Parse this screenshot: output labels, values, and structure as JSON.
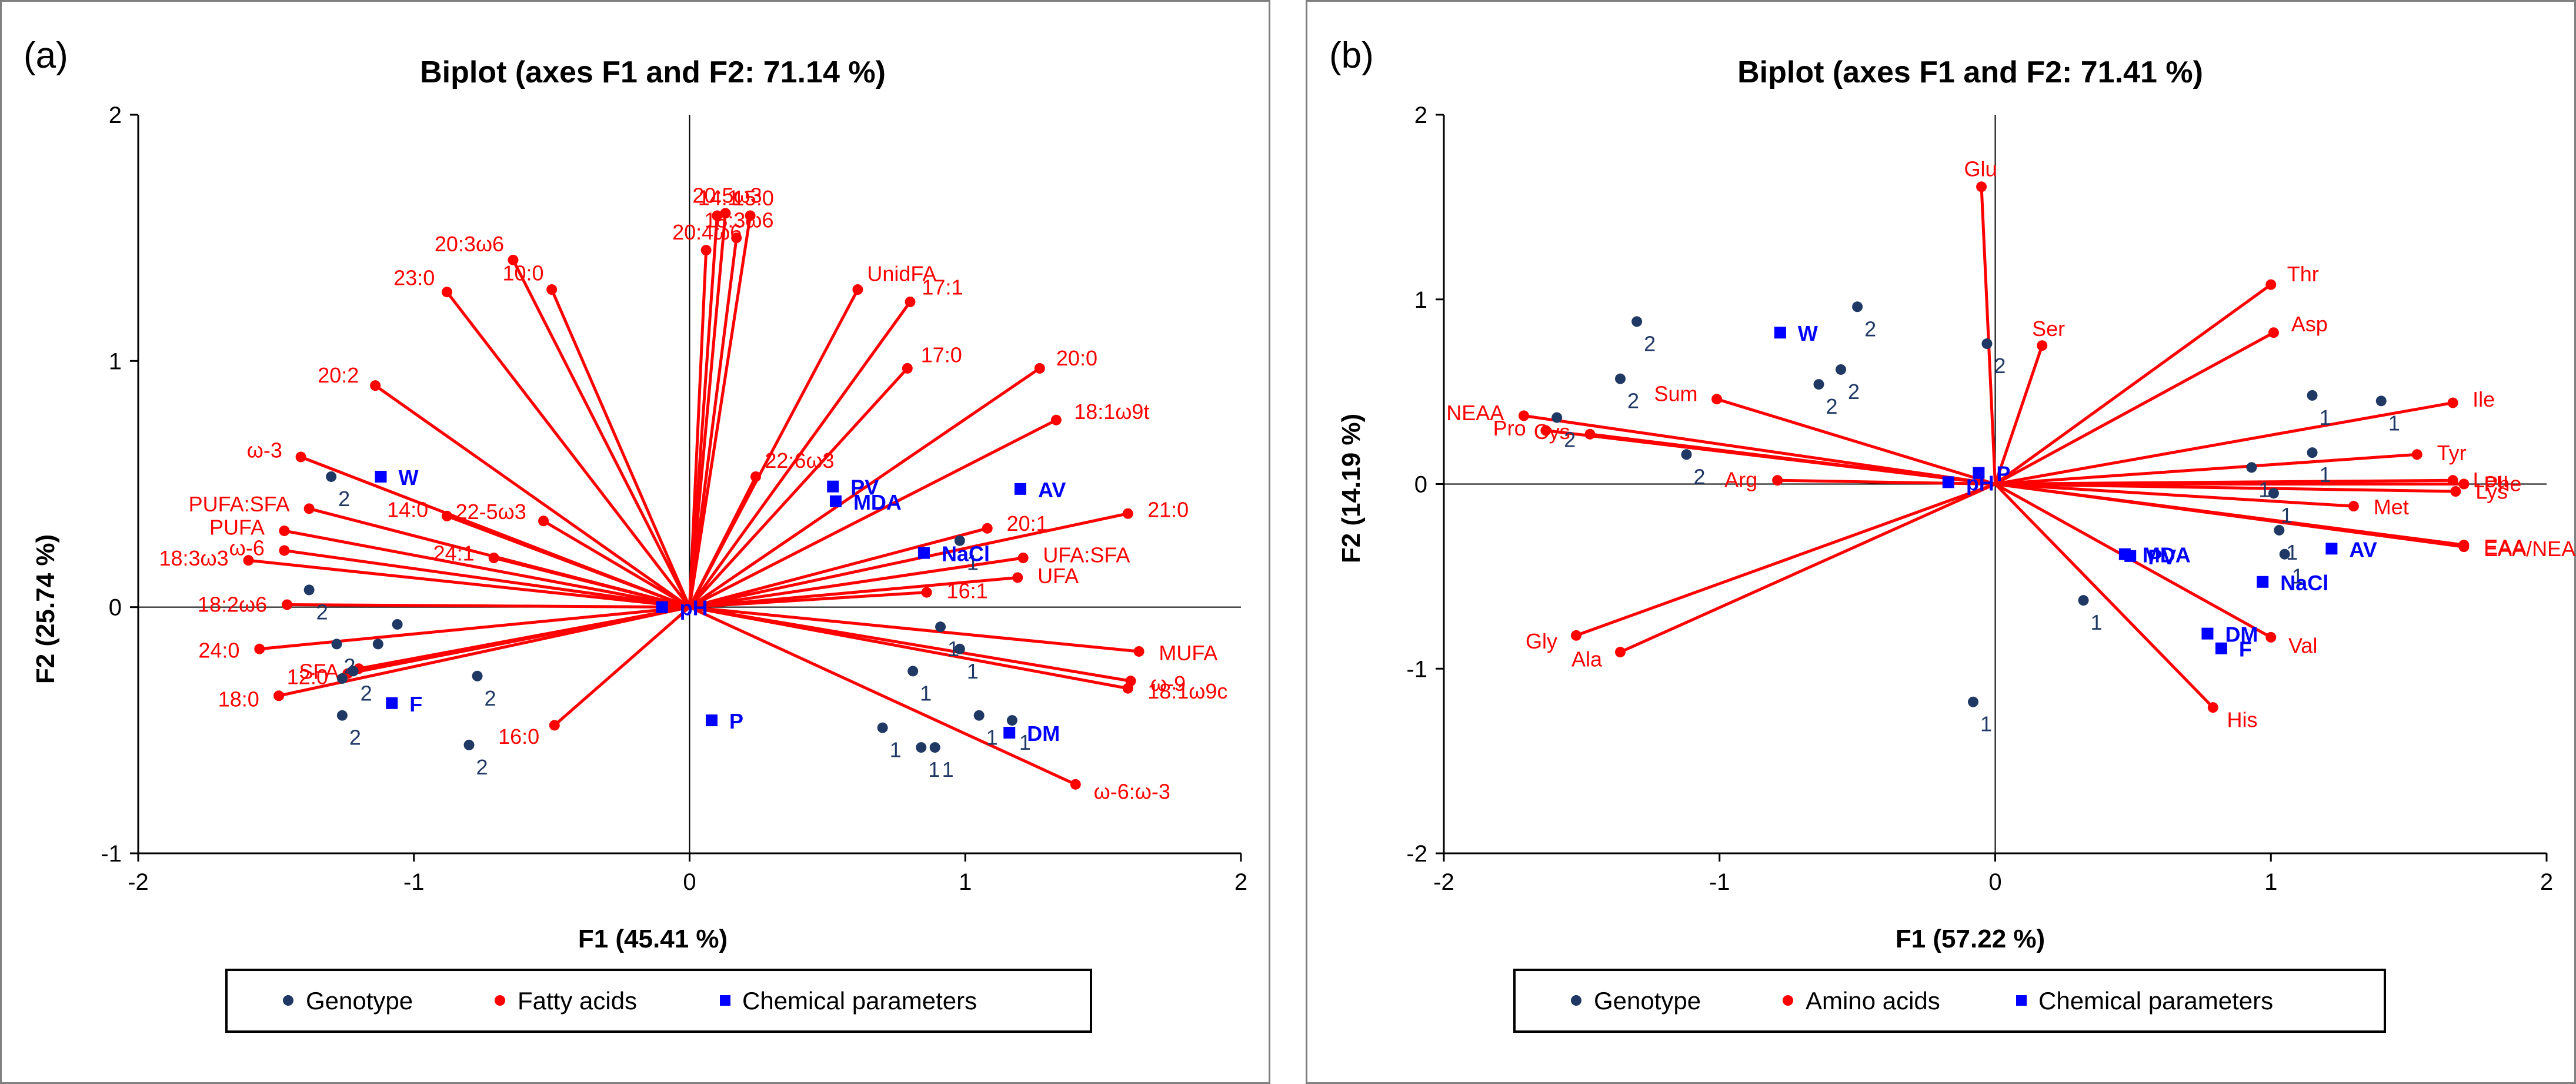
{
  "colors": {
    "genotype": "#1f3864",
    "variables": "#ff0000",
    "chemical": "#0000ff",
    "frame": "#7f7f7f"
  },
  "chart_data": [
    {
      "type": "scatter",
      "panel_label": "(a)",
      "title": "Biplot (axes F1 and F2: 71.14 %)",
      "xlabel": "F1 (45.41 %)",
      "ylabel": "F2 (25.74 %)",
      "xlim": [
        -2,
        2
      ],
      "ylim": [
        -1,
        2
      ],
      "xticks": [
        "-2",
        "-1",
        "0",
        "1",
        "2"
      ],
      "yticks": [
        "-1",
        "0",
        "1",
        "2"
      ],
      "legend": [
        "Genotype",
        "Fatty acids",
        "Chemical parameters"
      ],
      "vectors": [
        {
          "label": "20:5ω3",
          "x": 0.13,
          "y": 1.6
        },
        {
          "label": "14:1",
          "x": 0.1,
          "y": 1.59
        },
        {
          "label": "15:0",
          "x": 0.22,
          "y": 1.59
        },
        {
          "label": "20:4ω6",
          "x": 0.06,
          "y": 1.45
        },
        {
          "label": "18:3ω6",
          "x": 0.17,
          "y": 1.5
        },
        {
          "label": "20:3ω6",
          "x": -0.64,
          "y": 1.41
        },
        {
          "label": "10:0",
          "x": -0.5,
          "y": 1.29
        },
        {
          "label": "23:0",
          "x": -0.88,
          "y": 1.28
        },
        {
          "label": "UnidFA",
          "x": 0.61,
          "y": 1.29
        },
        {
          "label": "17:1",
          "x": 0.8,
          "y": 1.24
        },
        {
          "label": "17:0",
          "x": 0.79,
          "y": 0.97
        },
        {
          "label": "20:0",
          "x": 1.27,
          "y": 0.97
        },
        {
          "label": "18:1ω9t",
          "x": 1.33,
          "y": 0.76
        },
        {
          "label": "20:2",
          "x": -1.14,
          "y": 0.9
        },
        {
          "label": "22:6ω3",
          "x": 0.24,
          "y": 0.53
        },
        {
          "label": "ω-3",
          "x": -1.41,
          "y": 0.61
        },
        {
          "label": "PUFA:SFA",
          "x": -1.38,
          "y": 0.4
        },
        {
          "label": "PUFA",
          "x": -1.47,
          "y": 0.31
        },
        {
          "label": "ω-6",
          "x": -1.47,
          "y": 0.23
        },
        {
          "label": "14:0",
          "x": -0.88,
          "y": 0.37
        },
        {
          "label": "22-5ω3",
          "x": -0.53,
          "y": 0.35
        },
        {
          "label": "24:1",
          "x": -0.71,
          "y": 0.2
        },
        {
          "label": "18:3ω3",
          "x": -1.6,
          "y": 0.19
        },
        {
          "label": "18:2ω6",
          "x": -1.46,
          "y": 0.01
        },
        {
          "label": "24:0",
          "x": -1.56,
          "y": -0.17
        },
        {
          "label": "12:0",
          "x": -1.24,
          "y": -0.27
        },
        {
          "label": "18:0",
          "x": -1.49,
          "y": -0.36
        },
        {
          "label": "SFA",
          "x": -1.2,
          "y": -0.25
        },
        {
          "label": "16:0",
          "x": -0.49,
          "y": -0.48
        },
        {
          "label": "21:0",
          "x": 1.59,
          "y": 0.38
        },
        {
          "label": "20:1",
          "x": 1.08,
          "y": 0.32
        },
        {
          "label": "UFA:SFA",
          "x": 1.21,
          "y": 0.2
        },
        {
          "label": "UFA",
          "x": 1.19,
          "y": 0.12
        },
        {
          "label": "16:1",
          "x": 0.86,
          "y": 0.06
        },
        {
          "label": "MUFA",
          "x": 1.63,
          "y": -0.18
        },
        {
          "label": "ω-9",
          "x": 1.6,
          "y": -0.3
        },
        {
          "label": "18:1ω9c",
          "x": 1.59,
          "y": -0.33
        },
        {
          "label": "ω-6:ω-3",
          "x": 1.4,
          "y": -0.72
        }
      ],
      "genotypes": [
        {
          "label": "2",
          "x": -1.3,
          "y": 0.53
        },
        {
          "label": "2",
          "x": -1.38,
          "y": 0.07
        },
        {
          "label": "",
          "x": -1.06,
          "y": -0.07
        },
        {
          "label": "",
          "x": -1.13,
          "y": -0.15
        },
        {
          "label": "2",
          "x": -1.28,
          "y": -0.15
        },
        {
          "label": "2",
          "x": -1.22,
          "y": -0.26
        },
        {
          "label": "",
          "x": -1.26,
          "y": -0.29
        },
        {
          "label": "2",
          "x": -1.26,
          "y": -0.44
        },
        {
          "label": "2",
          "x": -0.8,
          "y": -0.56
        },
        {
          "label": "2",
          "x": -0.77,
          "y": -0.28
        },
        {
          "label": "1",
          "x": 0.98,
          "y": 0.27
        },
        {
          "label": "1",
          "x": 0.91,
          "y": -0.08
        },
        {
          "label": "1",
          "x": 0.98,
          "y": -0.17
        },
        {
          "label": "1",
          "x": 0.81,
          "y": -0.26
        },
        {
          "label": "1",
          "x": 1.05,
          "y": -0.44
        },
        {
          "label": "1",
          "x": 1.17,
          "y": -0.46
        },
        {
          "label": "1",
          "x": 0.7,
          "y": -0.49
        },
        {
          "label": "1",
          "x": 0.84,
          "y": -0.57
        },
        {
          "label": "1",
          "x": 0.89,
          "y": -0.57
        }
      ],
      "chemical": [
        {
          "label": "W",
          "x": -1.12,
          "y": 0.53
        },
        {
          "label": "F",
          "x": -1.08,
          "y": -0.39
        },
        {
          "label": "pH",
          "x": -0.1,
          "y": 0.0
        },
        {
          "label": "P",
          "x": 0.08,
          "y": -0.46
        },
        {
          "label": "PV",
          "x": 0.52,
          "y": 0.49
        },
        {
          "label": "MDA",
          "x": 0.53,
          "y": 0.43
        },
        {
          "label": "AV",
          "x": 1.2,
          "y": 0.48
        },
        {
          "label": "NaCl",
          "x": 0.85,
          "y": 0.22
        },
        {
          "label": "DM",
          "x": 1.16,
          "y": -0.51
        }
      ]
    },
    {
      "type": "scatter",
      "panel_label": "(b)",
      "title": "Biplot (axes F1 and F2: 71.41 %)",
      "xlabel": "F1 (57.22 %)",
      "ylabel": "F2 (14.19 %)",
      "xlim": [
        -2,
        2
      ],
      "ylim": [
        -2,
        2
      ],
      "xticks": [
        "-2",
        "-1",
        "0",
        "1",
        "2"
      ],
      "yticks": [
        "-2",
        "-1",
        "0",
        "1",
        "2"
      ],
      "legend": [
        "Genotype",
        "Amino acids",
        "Chemical parameters"
      ],
      "vectors": [
        {
          "label": "Glu",
          "x": -0.05,
          "y": 1.61
        },
        {
          "label": "Thr",
          "x": 1.0,
          "y": 1.08
        },
        {
          "label": "Asp",
          "x": 1.01,
          "y": 0.82
        },
        {
          "label": "Ser",
          "x": 0.17,
          "y": 0.75
        },
        {
          "label": "Ile",
          "x": 1.66,
          "y": 0.44
        },
        {
          "label": "Tyr",
          "x": 1.53,
          "y": 0.16
        },
        {
          "label": "Leu",
          "x": 1.66,
          "y": 0.02
        },
        {
          "label": "Phe",
          "x": 1.7,
          "y": 0.0
        },
        {
          "label": "Met",
          "x": 1.3,
          "y": -0.12
        },
        {
          "label": "Lys",
          "x": 1.67,
          "y": -0.04
        },
        {
          "label": "EAA",
          "x": 1.7,
          "y": -0.33
        },
        {
          "label": "EAA/NEAA",
          "x": 1.7,
          "y": -0.34
        },
        {
          "label": "Val",
          "x": 1.0,
          "y": -0.83
        },
        {
          "label": "His",
          "x": 0.79,
          "y": -1.21
        },
        {
          "label": "NEAA",
          "x": -1.71,
          "y": 0.37
        },
        {
          "label": "Pro",
          "x": -1.63,
          "y": 0.29
        },
        {
          "label": "Cys",
          "x": -1.47,
          "y": 0.27
        },
        {
          "label": "Sum",
          "x": -1.01,
          "y": 0.46
        },
        {
          "label": "Arg",
          "x": -0.79,
          "y": 0.02
        },
        {
          "label": "Gly",
          "x": -1.52,
          "y": -0.82
        },
        {
          "label": "Ala",
          "x": -1.36,
          "y": -0.91
        }
      ],
      "genotypes": [
        {
          "label": "2",
          "x": -1.3,
          "y": 0.88
        },
        {
          "label": "2",
          "x": -1.36,
          "y": 0.57
        },
        {
          "label": "2",
          "x": -1.59,
          "y": 0.36
        },
        {
          "label": "2",
          "x": -1.12,
          "y": 0.16
        },
        {
          "label": "2",
          "x": -0.5,
          "y": 0.96
        },
        {
          "label": "2",
          "x": -0.56,
          "y": 0.62
        },
        {
          "label": "2",
          "x": -0.64,
          "y": 0.54
        },
        {
          "label": "2",
          "x": -0.03,
          "y": 0.76
        },
        {
          "label": "1",
          "x": 1.15,
          "y": 0.48
        },
        {
          "label": "1",
          "x": 1.4,
          "y": 0.45
        },
        {
          "label": "1",
          "x": 1.15,
          "y": 0.17
        },
        {
          "label": "1",
          "x": 0.93,
          "y": 0.09
        },
        {
          "label": "1",
          "x": 1.01,
          "y": -0.05
        },
        {
          "label": "1",
          "x": 1.03,
          "y": -0.25
        },
        {
          "label": "1",
          "x": 1.05,
          "y": -0.38
        },
        {
          "label": "1",
          "x": 0.32,
          "y": -0.63
        },
        {
          "label": "1",
          "x": -0.08,
          "y": -1.18
        }
      ],
      "chemical": [
        {
          "label": "W",
          "x": -0.78,
          "y": 0.82
        },
        {
          "label": "P",
          "x": -0.06,
          "y": 0.06
        },
        {
          "label": "pH",
          "x": -0.17,
          "y": 0.01
        },
        {
          "label": "MDA",
          "x": 0.47,
          "y": -0.38
        },
        {
          "label": "PV",
          "x": 0.49,
          "y": -0.39
        },
        {
          "label": "AV",
          "x": 1.22,
          "y": -0.35
        },
        {
          "label": "NaCl",
          "x": 0.97,
          "y": -0.53
        },
        {
          "label": "DM",
          "x": 0.77,
          "y": -0.81
        },
        {
          "label": "F",
          "x": 0.82,
          "y": -0.89
        }
      ]
    }
  ]
}
